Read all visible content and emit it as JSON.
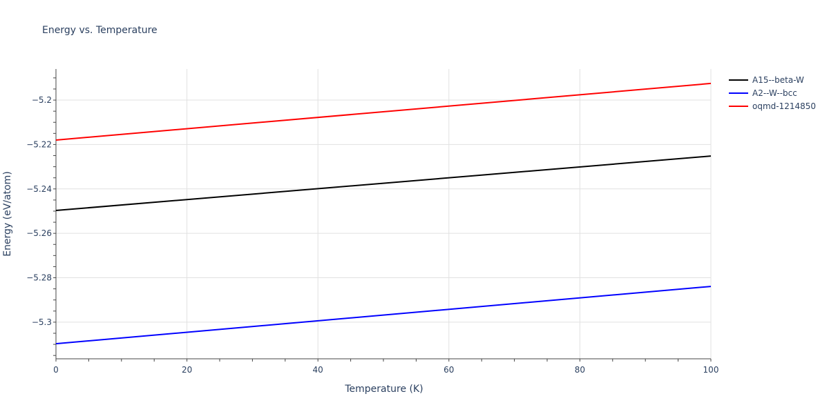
{
  "title": "Energy vs. Temperature",
  "chart_data": {
    "type": "line",
    "title": "Energy vs. Temperature",
    "xlabel": "Temperature (K)",
    "ylabel": "Energy (eV/atom)",
    "xlim": [
      0,
      100
    ],
    "ylim": [
      -5.3165,
      -5.186
    ],
    "x_ticks": [
      0,
      20,
      40,
      60,
      80,
      100
    ],
    "y_ticks": [
      -5.3,
      -5.28,
      -5.26,
      -5.24,
      -5.22,
      -5.2
    ],
    "y_tick_labels": [
      "−5.3",
      "−5.28",
      "−5.26",
      "−5.24",
      "−5.22",
      "−5.2"
    ],
    "grid": true,
    "legend_position": "right",
    "x": [
      0,
      100
    ],
    "series": [
      {
        "name": "A15--beta-W",
        "color": "#000000",
        "values": [
          -5.2497,
          -5.2252
        ]
      },
      {
        "name": "A2--W--bcc",
        "color": "#0000ff",
        "values": [
          -5.3097,
          -5.2839
        ]
      },
      {
        "name": "oqmd-1214850",
        "color": "#ff0000",
        "values": [
          -5.218,
          -5.1925
        ]
      }
    ]
  }
}
